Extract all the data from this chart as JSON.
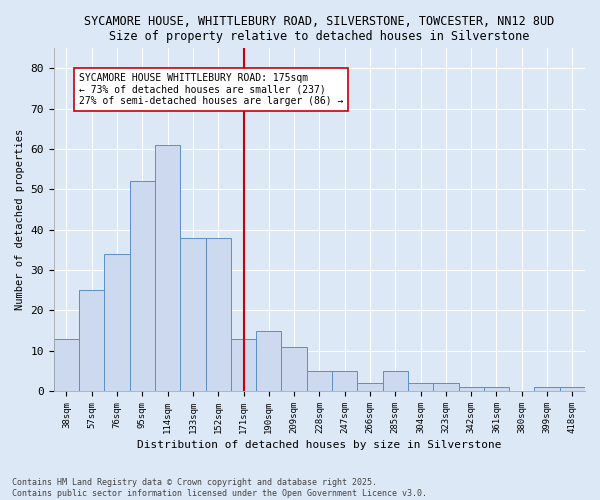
{
  "title": "SYCAMORE HOUSE, WHITTLEBURY ROAD, SILVERSTONE, TOWCESTER, NN12 8UD",
  "subtitle": "Size of property relative to detached houses in Silverstone",
  "xlabel": "Distribution of detached houses by size in Silverstone",
  "ylabel": "Number of detached properties",
  "categories": [
    "38sqm",
    "57sqm",
    "76sqm",
    "95sqm",
    "114sqm",
    "133sqm",
    "152sqm",
    "171sqm",
    "190sqm",
    "209sqm",
    "228sqm",
    "247sqm",
    "266sqm",
    "285sqm",
    "304sqm",
    "323sqm",
    "342sqm",
    "361sqm",
    "380sqm",
    "399sqm",
    "418sqm"
  ],
  "values": [
    13,
    25,
    34,
    52,
    61,
    38,
    38,
    13,
    15,
    11,
    5,
    5,
    2,
    5,
    2,
    2,
    1,
    1,
    0,
    1,
    1
  ],
  "bar_color": "#ccd9ee",
  "bar_edge_color": "#5b8fc9",
  "vline_x_idx": 7,
  "vline_color": "#cc0000",
  "annotation_title": "SYCAMORE HOUSE WHITTLEBURY ROAD: 175sqm",
  "annotation_line1": "← 73% of detached houses are smaller (237)",
  "annotation_line2": "27% of semi-detached houses are larger (86) →",
  "annotation_box_color": "#ffffff",
  "annotation_box_edge": "#cc0000",
  "ylim": [
    0,
    85
  ],
  "yticks": [
    0,
    10,
    20,
    30,
    40,
    50,
    60,
    70,
    80
  ],
  "footer1": "Contains HM Land Registry data © Crown copyright and database right 2025.",
  "footer2": "Contains public sector information licensed under the Open Government Licence v3.0.",
  "bg_color": "#dce8f5",
  "plot_bg_color": "#dce8f5",
  "grid_color": "#ffffff",
  "title_fontsize": 8.5,
  "subtitle_fontsize": 8.5
}
